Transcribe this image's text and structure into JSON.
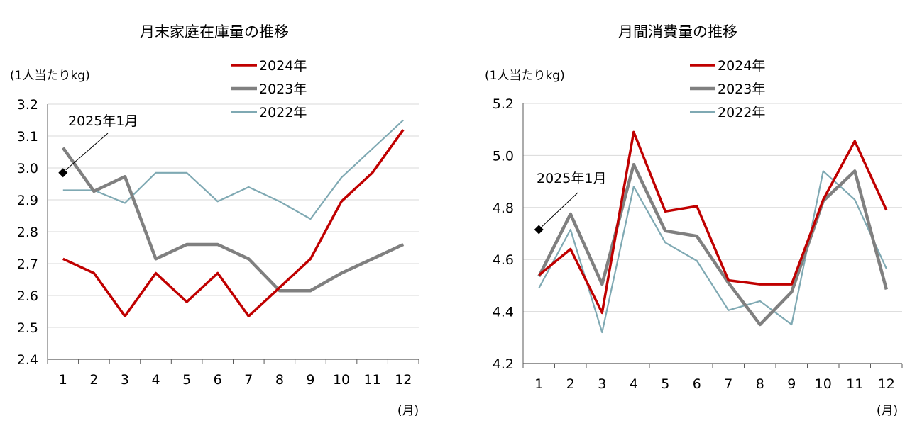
{
  "chart_data": [
    {
      "type": "line",
      "title": "月末家庭在庫量の推移",
      "ylabel": "(1人当たりkg)",
      "xlabel": "(月)",
      "categories": [
        "1",
        "2",
        "3",
        "4",
        "5",
        "6",
        "7",
        "8",
        "9",
        "10",
        "11",
        "12"
      ],
      "ylim": [
        2.4,
        3.2
      ],
      "yticks": [
        "2.4",
        "2.5",
        "2.6",
        "2.7",
        "2.8",
        "2.9",
        "3.0",
        "3.1",
        "3.2"
      ],
      "grid": true,
      "legend_position": "top-right",
      "series": [
        {
          "name": "2024年",
          "color": "#c00000",
          "values": [
            2.715,
            2.67,
            2.535,
            2.67,
            2.58,
            2.67,
            2.535,
            2.625,
            2.715,
            2.895,
            2.985,
            3.12
          ]
        },
        {
          "name": "2023年",
          "color": "#808080",
          "values": [
            3.063,
            2.927,
            2.973,
            2.715,
            2.76,
            2.76,
            2.715,
            2.615,
            2.615,
            2.67,
            2.715,
            2.76
          ]
        },
        {
          "name": "2022年",
          "color": "#7fa9b3",
          "values": [
            2.93,
            2.93,
            2.89,
            2.985,
            2.985,
            2.895,
            2.94,
            2.895,
            2.84,
            2.97,
            3.06,
            3.15
          ]
        }
      ],
      "points": [
        {
          "label": "2025年1月",
          "x": "1",
          "y": 2.985
        }
      ]
    },
    {
      "type": "line",
      "title": "月間消費量の推移",
      "ylabel": "(1人当たりkg)",
      "xlabel": "(月)",
      "categories": [
        "1",
        "2",
        "3",
        "4",
        "5",
        "6",
        "7",
        "8",
        "9",
        "10",
        "11",
        "12"
      ],
      "ylim": [
        4.2,
        5.2
      ],
      "yticks": [
        "4.2",
        "4.4",
        "4.6",
        "4.8",
        "5.0",
        "5.2"
      ],
      "grid": true,
      "legend_position": "top-right",
      "series": [
        {
          "name": "2024年",
          "color": "#c00000",
          "values": [
            4.54,
            4.64,
            4.395,
            5.09,
            4.785,
            4.805,
            4.52,
            4.505,
            4.505,
            4.83,
            5.055,
            4.79
          ]
        },
        {
          "name": "2023年",
          "color": "#808080",
          "values": [
            4.535,
            4.775,
            4.505,
            4.965,
            4.71,
            4.69,
            4.51,
            4.35,
            4.475,
            4.825,
            4.94,
            4.485
          ]
        },
        {
          "name": "2022年",
          "color": "#7fa9b3",
          "values": [
            4.49,
            4.715,
            4.32,
            4.88,
            4.665,
            4.595,
            4.405,
            4.44,
            4.35,
            4.94,
            4.83,
            4.565
          ]
        }
      ],
      "points": [
        {
          "label": "2025年1月",
          "x": "1",
          "y": 4.715
        }
      ]
    }
  ]
}
